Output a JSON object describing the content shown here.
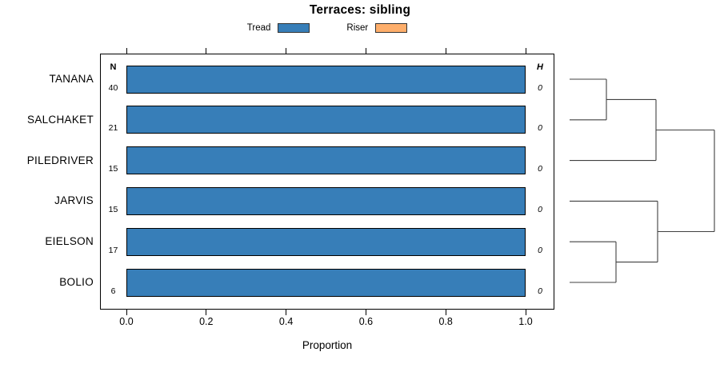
{
  "page": {
    "background": "#ffffff"
  },
  "chart_data": {
    "type": "bar",
    "orientation": "horizontal",
    "title": "Terraces: sibling",
    "xlabel": "Proportion",
    "x_ticks": [
      "0.0",
      "0.2",
      "0.4",
      "0.6",
      "0.8",
      "1.0"
    ],
    "x_tick_values": [
      0,
      0.2,
      0.4,
      0.6,
      0.8,
      1.0
    ],
    "xlim": [
      -0.066,
      1.072
    ],
    "grid": false,
    "categories": [
      "TANANA",
      "SALCHAKET",
      "PILEDRIVER",
      "JARVIS",
      "EIELSON",
      "BOLIO"
    ],
    "series": [
      {
        "name": "Tread",
        "color": "#377EB8",
        "values": [
          1.0,
          1.0,
          1.0,
          1.0,
          1.0,
          1.0
        ]
      },
      {
        "name": "Riser",
        "color": "#FDAE6B",
        "values": [
          0,
          0,
          0,
          0,
          0,
          0
        ]
      }
    ],
    "legend": {
      "position": "top",
      "items": [
        {
          "label": "Tread",
          "color": "#377EB8"
        },
        {
          "label": "Riser",
          "color": "#FDAE6B"
        }
      ]
    },
    "n_column": {
      "header": "N",
      "values": [
        40,
        21,
        15,
        15,
        17,
        6
      ]
    },
    "h_column": {
      "header": "H",
      "values": [
        0,
        0,
        0,
        0,
        0,
        0
      ]
    },
    "bar_border_color": "#000000",
    "dendrogram": {
      "newick": "(((TANANA,SALCHAKET),PILEDRIVER),(JARVIS,(EIELSON,BOLIO)))",
      "line_color": "#404040",
      "segments": [
        [
          12,
          39,
          58,
          39
        ],
        [
          12,
          89.8,
          58,
          89.8
        ],
        [
          58,
          39,
          58,
          89.8
        ],
        [
          58,
          64.4,
          120,
          64.4
        ],
        [
          12,
          140.6,
          120,
          140.6
        ],
        [
          120,
          64.4,
          120,
          140.6
        ],
        [
          120,
          102.5,
          193,
          102.5
        ],
        [
          12,
          191.4,
          122,
          191.4
        ],
        [
          12,
          242.2,
          70,
          242.2
        ],
        [
          12,
          293,
          70,
          293
        ],
        [
          70,
          242.2,
          70,
          293
        ],
        [
          70,
          267.6,
          122,
          267.6
        ],
        [
          122,
          191.4,
          122,
          267.6
        ],
        [
          122,
          229.5,
          193,
          229.5
        ],
        [
          193,
          102.5,
          193,
          229.5
        ]
      ]
    }
  }
}
